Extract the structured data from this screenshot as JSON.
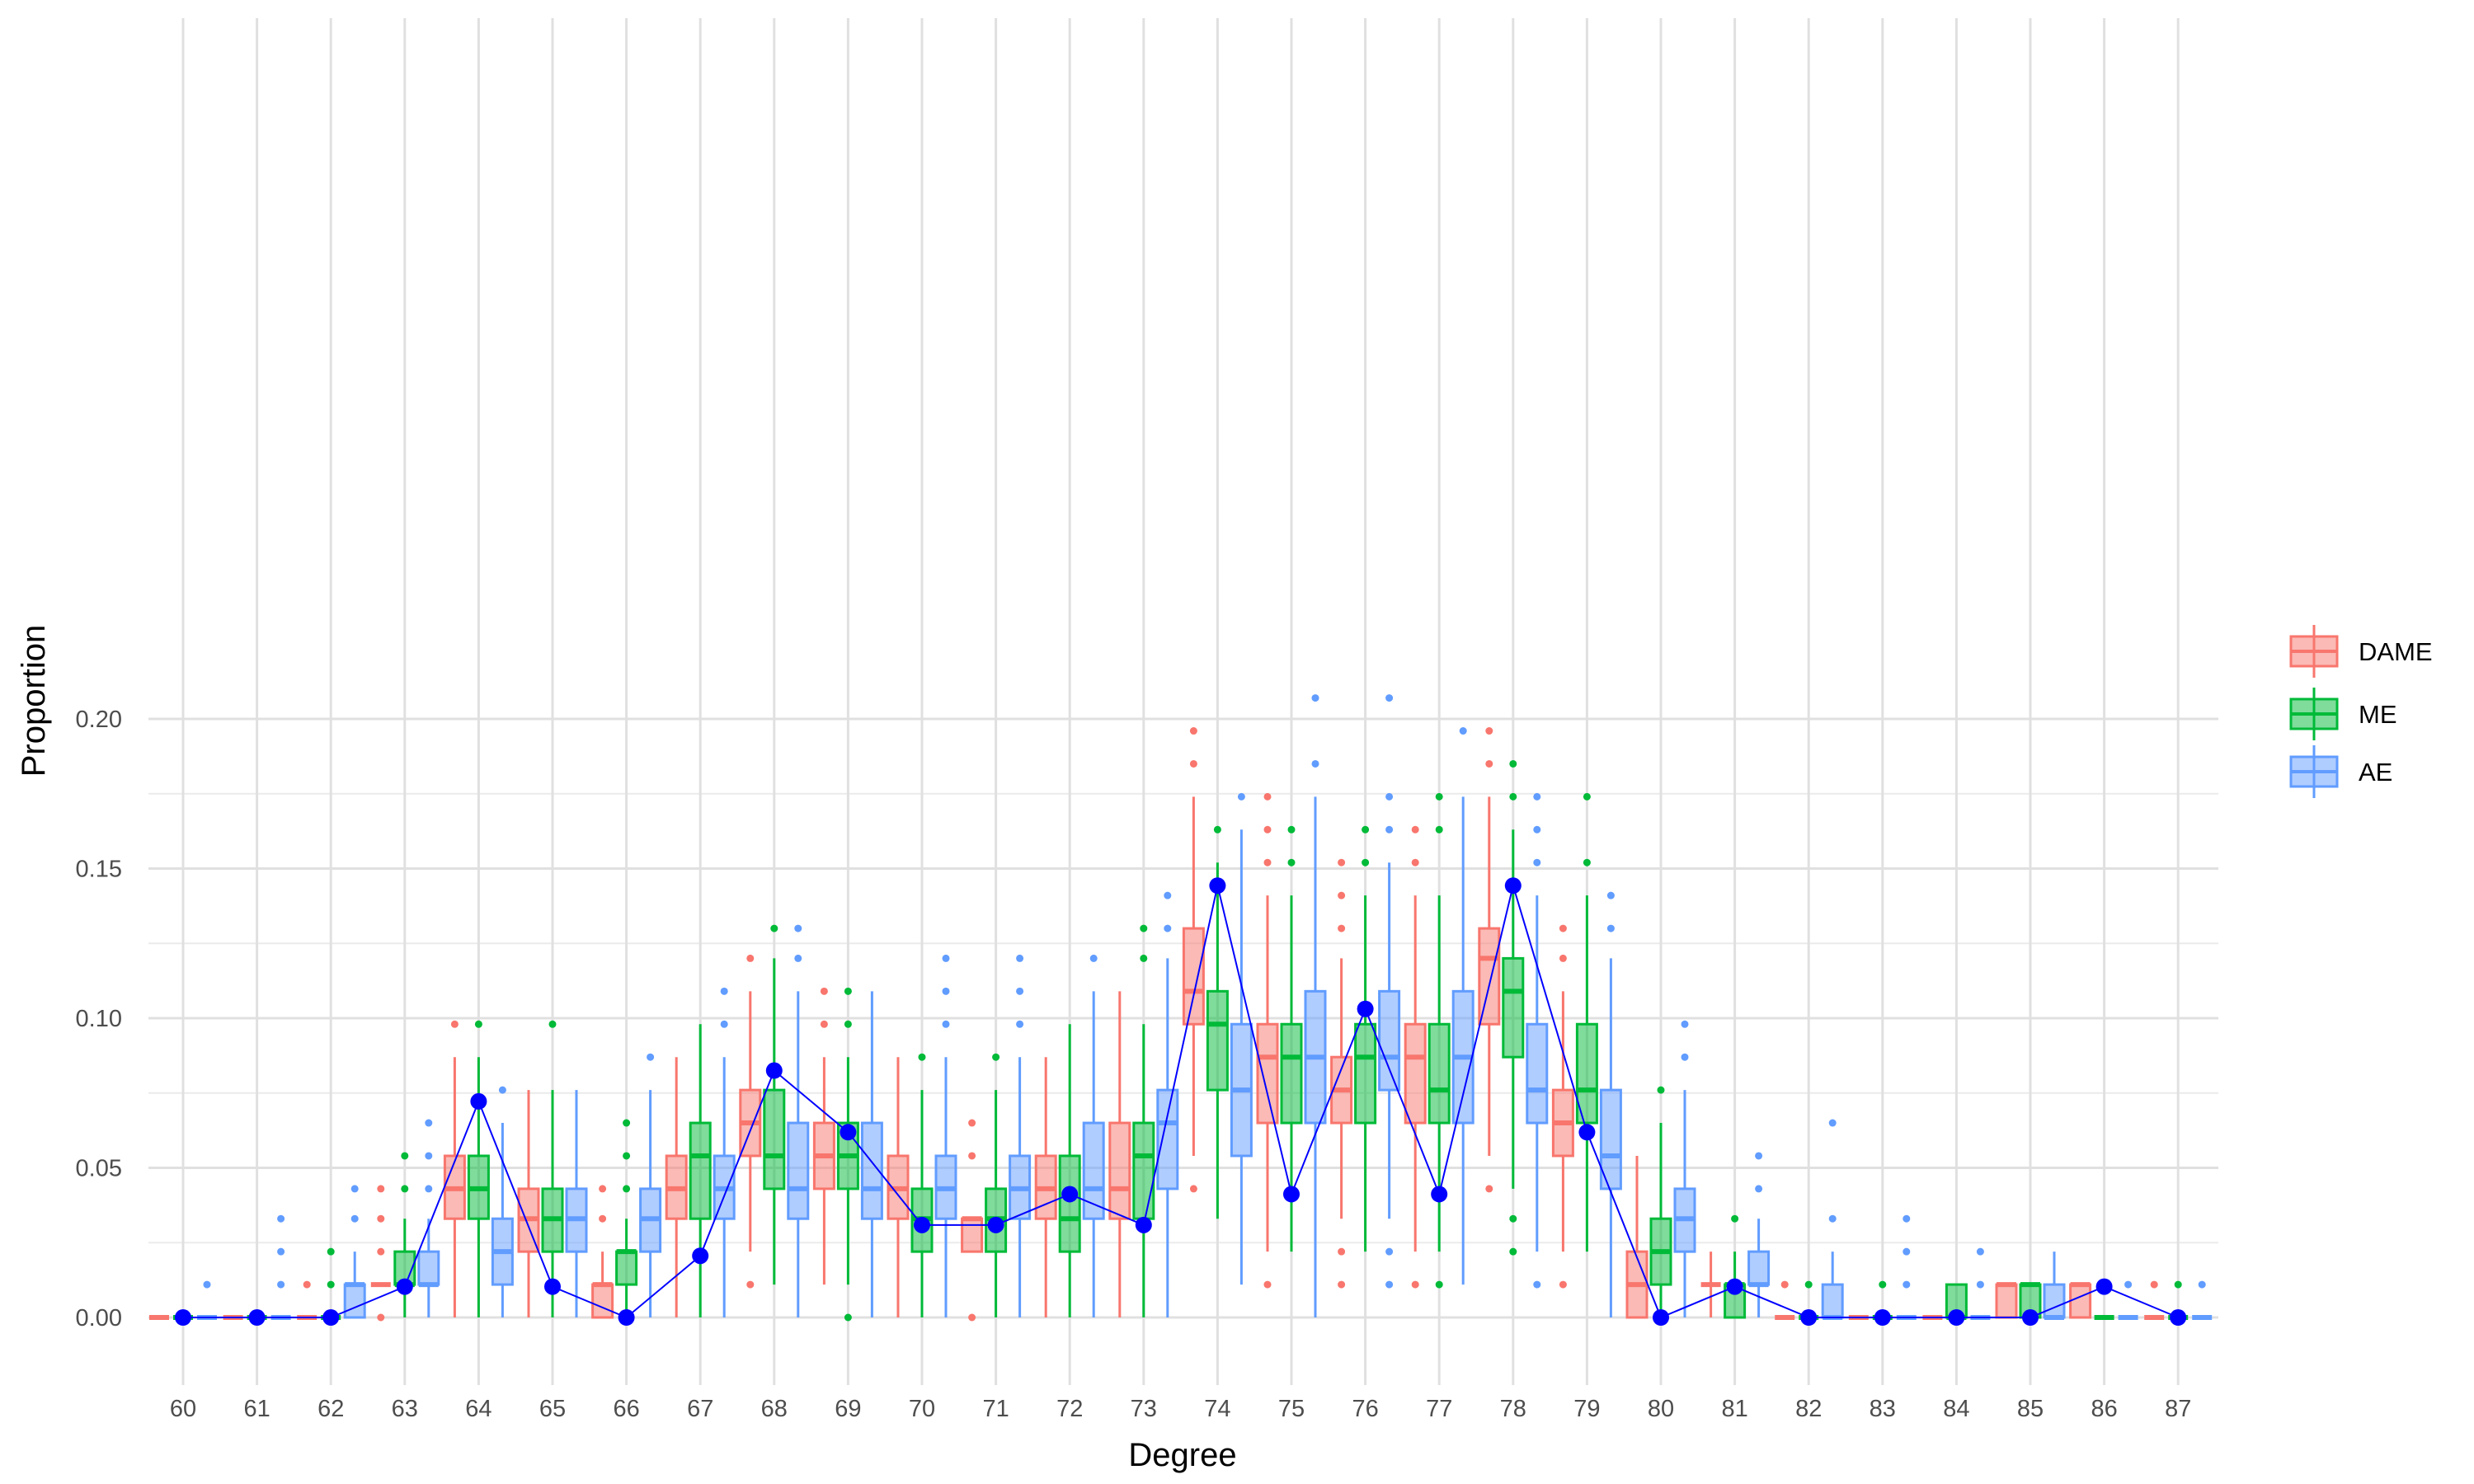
{
  "chart_data": {
    "type": "boxplot",
    "xlabel": "Degree",
    "ylabel": "Proportion",
    "categories": [
      "60",
      "61",
      "62",
      "63",
      "64",
      "65",
      "66",
      "67",
      "68",
      "69",
      "70",
      "71",
      "72",
      "73",
      "74",
      "75",
      "76",
      "77",
      "78",
      "79",
      "80",
      "81",
      "82",
      "83",
      "84",
      "85",
      "86",
      "87"
    ],
    "ylim": [
      -0.01,
      0.218
    ],
    "yticks": [
      0.0,
      0.05,
      0.1,
      0.15,
      0.2
    ],
    "ytick_labels": [
      "0.00",
      "0.05",
      "0.10",
      "0.15",
      "0.20"
    ],
    "grid": true,
    "legend_position": "right",
    "series": [
      {
        "name": "DAME",
        "color": "#F8766D",
        "boxes": [
          {
            "lower": 0,
            "q1": 0,
            "median": 0,
            "q3": 0,
            "upper": 0,
            "outliers": []
          },
          {
            "lower": 0,
            "q1": 0,
            "median": 0,
            "q3": 0,
            "upper": 0,
            "outliers": []
          },
          {
            "lower": 0,
            "q1": 0,
            "median": 0,
            "q3": 0,
            "upper": 0,
            "outliers": [
              0.011
            ]
          },
          {
            "lower": 0.011,
            "q1": 0.011,
            "median": 0.011,
            "q3": 0.011,
            "upper": 0.011,
            "outliers": [
              0.043,
              0.033,
              0.022,
              0
            ]
          },
          {
            "lower": 0,
            "q1": 0.033,
            "median": 0.043,
            "q3": 0.054,
            "upper": 0.087,
            "outliers": [
              0.098
            ]
          },
          {
            "lower": 0,
            "q1": 0.022,
            "median": 0.033,
            "q3": 0.043,
            "upper": 0.076,
            "outliers": []
          },
          {
            "lower": 0,
            "q1": 0,
            "median": 0.011,
            "q3": 0.011,
            "upper": 0.022,
            "outliers": [
              0.043,
              0.033
            ]
          },
          {
            "lower": 0,
            "q1": 0.033,
            "median": 0.043,
            "q3": 0.054,
            "upper": 0.087,
            "outliers": []
          },
          {
            "lower": 0.022,
            "q1": 0.054,
            "median": 0.065,
            "q3": 0.076,
            "upper": 0.109,
            "outliers": [
              0.12,
              0.011
            ]
          },
          {
            "lower": 0.011,
            "q1": 0.043,
            "median": 0.054,
            "q3": 0.065,
            "upper": 0.087,
            "outliers": [
              0.109,
              0.098
            ]
          },
          {
            "lower": 0,
            "q1": 0.033,
            "median": 0.043,
            "q3": 0.054,
            "upper": 0.087,
            "outliers": []
          },
          {
            "lower": 0.022,
            "q1": 0.022,
            "median": 0.033,
            "q3": 0.033,
            "upper": 0.033,
            "outliers": [
              0.065,
              0.054,
              0
            ]
          },
          {
            "lower": 0,
            "q1": 0.033,
            "median": 0.043,
            "q3": 0.054,
            "upper": 0.087,
            "outliers": []
          },
          {
            "lower": 0,
            "q1": 0.033,
            "median": 0.043,
            "q3": 0.065,
            "upper": 0.109,
            "outliers": []
          },
          {
            "lower": 0.054,
            "q1": 0.098,
            "median": 0.109,
            "q3": 0.13,
            "upper": 0.174,
            "outliers": [
              0.196,
              0.185,
              0.043
            ]
          },
          {
            "lower": 0.022,
            "q1": 0.065,
            "median": 0.087,
            "q3": 0.098,
            "upper": 0.141,
            "outliers": [
              0.174,
              0.163,
              0.152,
              0.011
            ]
          },
          {
            "lower": 0.033,
            "q1": 0.065,
            "median": 0.076,
            "q3": 0.087,
            "upper": 0.12,
            "outliers": [
              0.152,
              0.141,
              0.13,
              0.022,
              0.011
            ]
          },
          {
            "lower": 0.022,
            "q1": 0.065,
            "median": 0.087,
            "q3": 0.098,
            "upper": 0.141,
            "outliers": [
              0.163,
              0.152,
              0.011
            ]
          },
          {
            "lower": 0.054,
            "q1": 0.098,
            "median": 0.12,
            "q3": 0.13,
            "upper": 0.174,
            "outliers": [
              0.196,
              0.185,
              0.043
            ]
          },
          {
            "lower": 0.022,
            "q1": 0.054,
            "median": 0.065,
            "q3": 0.076,
            "upper": 0.109,
            "outliers": [
              0.13,
              0.12,
              0.011
            ]
          },
          {
            "lower": 0,
            "q1": 0,
            "median": 0.011,
            "q3": 0.022,
            "upper": 0.054,
            "outliers": []
          },
          {
            "lower": 0,
            "q1": 0.011,
            "median": 0.011,
            "q3": 0.011,
            "upper": 0.022,
            "outliers": []
          },
          {
            "lower": 0,
            "q1": 0,
            "median": 0,
            "q3": 0,
            "upper": 0,
            "outliers": [
              0.011
            ]
          },
          {
            "lower": 0,
            "q1": 0,
            "median": 0,
            "q3": 0,
            "upper": 0,
            "outliers": []
          },
          {
            "lower": 0,
            "q1": 0,
            "median": 0,
            "q3": 0,
            "upper": 0,
            "outliers": []
          },
          {
            "lower": 0,
            "q1": 0,
            "median": 0.011,
            "q3": 0.011,
            "upper": 0.011,
            "outliers": []
          },
          {
            "lower": 0,
            "q1": 0,
            "median": 0.011,
            "q3": 0.011,
            "upper": 0.011,
            "outliers": []
          },
          {
            "lower": 0,
            "q1": 0,
            "median": 0,
            "q3": 0,
            "upper": 0,
            "outliers": [
              0.011
            ]
          }
        ]
      },
      {
        "name": "ME",
        "color": "#00BA38",
        "boxes": [
          {
            "lower": 0,
            "q1": 0,
            "median": 0,
            "q3": 0,
            "upper": 0,
            "outliers": []
          },
          {
            "lower": 0,
            "q1": 0,
            "median": 0,
            "q3": 0,
            "upper": 0,
            "outliers": []
          },
          {
            "lower": 0,
            "q1": 0,
            "median": 0,
            "q3": 0,
            "upper": 0,
            "outliers": [
              0.022,
              0.011
            ]
          },
          {
            "lower": 0,
            "q1": 0.011,
            "median": 0.011,
            "q3": 0.022,
            "upper": 0.033,
            "outliers": [
              0.054,
              0.043
            ]
          },
          {
            "lower": 0,
            "q1": 0.033,
            "median": 0.043,
            "q3": 0.054,
            "upper": 0.087,
            "outliers": [
              0.098
            ]
          },
          {
            "lower": 0,
            "q1": 0.022,
            "median": 0.033,
            "q3": 0.043,
            "upper": 0.076,
            "outliers": [
              0.098
            ]
          },
          {
            "lower": 0,
            "q1": 0.011,
            "median": 0.022,
            "q3": 0.022,
            "upper": 0.033,
            "outliers": [
              0.065,
              0.054,
              0.043
            ]
          },
          {
            "lower": 0,
            "q1": 0.033,
            "median": 0.054,
            "q3": 0.065,
            "upper": 0.098,
            "outliers": []
          },
          {
            "lower": 0.011,
            "q1": 0.043,
            "median": 0.054,
            "q3": 0.076,
            "upper": 0.12,
            "outliers": [
              0.13
            ]
          },
          {
            "lower": 0.011,
            "q1": 0.043,
            "median": 0.054,
            "q3": 0.065,
            "upper": 0.087,
            "outliers": [
              0.109,
              0.098,
              0
            ]
          },
          {
            "lower": 0,
            "q1": 0.022,
            "median": 0.033,
            "q3": 0.043,
            "upper": 0.076,
            "outliers": [
              0.087
            ]
          },
          {
            "lower": 0,
            "q1": 0.022,
            "median": 0.033,
            "q3": 0.043,
            "upper": 0.076,
            "outliers": [
              0.087
            ]
          },
          {
            "lower": 0,
            "q1": 0.022,
            "median": 0.033,
            "q3": 0.054,
            "upper": 0.098,
            "outliers": []
          },
          {
            "lower": 0,
            "q1": 0.033,
            "median": 0.054,
            "q3": 0.065,
            "upper": 0.098,
            "outliers": [
              0.13,
              0.12
            ]
          },
          {
            "lower": 0.033,
            "q1": 0.076,
            "median": 0.098,
            "q3": 0.109,
            "upper": 0.152,
            "outliers": [
              0.163
            ]
          },
          {
            "lower": 0.022,
            "q1": 0.065,
            "median": 0.087,
            "q3": 0.098,
            "upper": 0.141,
            "outliers": [
              0.163,
              0.152
            ]
          },
          {
            "lower": 0.022,
            "q1": 0.065,
            "median": 0.087,
            "q3": 0.098,
            "upper": 0.141,
            "outliers": [
              0.163,
              0.152
            ]
          },
          {
            "lower": 0.022,
            "q1": 0.065,
            "median": 0.076,
            "q3": 0.098,
            "upper": 0.141,
            "outliers": [
              0.174,
              0.163,
              0.011
            ]
          },
          {
            "lower": 0.043,
            "q1": 0.087,
            "median": 0.109,
            "q3": 0.12,
            "upper": 0.163,
            "outliers": [
              0.185,
              0.174,
              0.033,
              0.022
            ]
          },
          {
            "lower": 0.022,
            "q1": 0.065,
            "median": 0.076,
            "q3": 0.098,
            "upper": 0.141,
            "outliers": [
              0.174,
              0.152
            ]
          },
          {
            "lower": 0,
            "q1": 0.011,
            "median": 0.022,
            "q3": 0.033,
            "upper": 0.065,
            "outliers": [
              0.076
            ]
          },
          {
            "lower": 0,
            "q1": 0,
            "median": 0.011,
            "q3": 0.011,
            "upper": 0.022,
            "outliers": [
              0.033
            ]
          },
          {
            "lower": 0,
            "q1": 0,
            "median": 0,
            "q3": 0,
            "upper": 0,
            "outliers": [
              0.011
            ]
          },
          {
            "lower": 0,
            "q1": 0,
            "median": 0,
            "q3": 0,
            "upper": 0,
            "outliers": [
              0.011
            ]
          },
          {
            "lower": 0,
            "q1": 0,
            "median": 0,
            "q3": 0.011,
            "upper": 0.011,
            "outliers": []
          },
          {
            "lower": 0,
            "q1": 0,
            "median": 0.011,
            "q3": 0.011,
            "upper": 0.011,
            "outliers": []
          },
          {
            "lower": 0,
            "q1": 0,
            "median": 0,
            "q3": 0,
            "upper": 0,
            "outliers": [
              0.011
            ]
          },
          {
            "lower": 0,
            "q1": 0,
            "median": 0,
            "q3": 0,
            "upper": 0,
            "outliers": [
              0.011
            ]
          }
        ]
      },
      {
        "name": "AE",
        "color": "#619CFF",
        "boxes": [
          {
            "lower": 0,
            "q1": 0,
            "median": 0,
            "q3": 0,
            "upper": 0,
            "outliers": [
              0.011
            ]
          },
          {
            "lower": 0,
            "q1": 0,
            "median": 0,
            "q3": 0,
            "upper": 0,
            "outliers": [
              0.033,
              0.022,
              0.011
            ]
          },
          {
            "lower": 0,
            "q1": 0,
            "median": 0.011,
            "q3": 0.011,
            "upper": 0.022,
            "outliers": [
              0.043,
              0.033
            ]
          },
          {
            "lower": 0,
            "q1": 0.011,
            "median": 0.011,
            "q3": 0.022,
            "upper": 0.033,
            "outliers": [
              0.065,
              0.054,
              0.043
            ]
          },
          {
            "lower": 0,
            "q1": 0.011,
            "median": 0.022,
            "q3": 0.033,
            "upper": 0.065,
            "outliers": [
              0.076
            ]
          },
          {
            "lower": 0,
            "q1": 0.022,
            "median": 0.033,
            "q3": 0.043,
            "upper": 0.076,
            "outliers": []
          },
          {
            "lower": 0,
            "q1": 0.022,
            "median": 0.033,
            "q3": 0.043,
            "upper": 0.076,
            "outliers": [
              0.087
            ]
          },
          {
            "lower": 0,
            "q1": 0.033,
            "median": 0.043,
            "q3": 0.054,
            "upper": 0.087,
            "outliers": [
              0.109,
              0.098
            ]
          },
          {
            "lower": 0,
            "q1": 0.033,
            "median": 0.043,
            "q3": 0.065,
            "upper": 0.109,
            "outliers": [
              0.13,
              0.12
            ]
          },
          {
            "lower": 0,
            "q1": 0.033,
            "median": 0.043,
            "q3": 0.065,
            "upper": 0.109,
            "outliers": []
          },
          {
            "lower": 0,
            "q1": 0.033,
            "median": 0.043,
            "q3": 0.054,
            "upper": 0.087,
            "outliers": [
              0.12,
              0.109,
              0.098
            ]
          },
          {
            "lower": 0,
            "q1": 0.033,
            "median": 0.043,
            "q3": 0.054,
            "upper": 0.087,
            "outliers": [
              0.12,
              0.109,
              0.098
            ]
          },
          {
            "lower": 0,
            "q1": 0.033,
            "median": 0.043,
            "q3": 0.065,
            "upper": 0.109,
            "outliers": [
              0.12
            ]
          },
          {
            "lower": 0,
            "q1": 0.043,
            "median": 0.065,
            "q3": 0.076,
            "upper": 0.12,
            "outliers": [
              0.141,
              0.13
            ]
          },
          {
            "lower": 0.011,
            "q1": 0.054,
            "median": 0.076,
            "q3": 0.098,
            "upper": 0.163,
            "outliers": [
              0.174
            ]
          },
          {
            "lower": 0,
            "q1": 0.065,
            "median": 0.087,
            "q3": 0.109,
            "upper": 0.174,
            "outliers": [
              0.207,
              0.185
            ]
          },
          {
            "lower": 0.033,
            "q1": 0.076,
            "median": 0.087,
            "q3": 0.109,
            "upper": 0.152,
            "outliers": [
              0.207,
              0.174,
              0.163,
              0.022,
              0.011
            ]
          },
          {
            "lower": 0.011,
            "q1": 0.065,
            "median": 0.087,
            "q3": 0.109,
            "upper": 0.174,
            "outliers": [
              0.196
            ]
          },
          {
            "lower": 0.022,
            "q1": 0.065,
            "median": 0.076,
            "q3": 0.098,
            "upper": 0.141,
            "outliers": [
              0.174,
              0.163,
              0.152,
              0.011
            ]
          },
          {
            "lower": 0,
            "q1": 0.043,
            "median": 0.054,
            "q3": 0.076,
            "upper": 0.12,
            "outliers": [
              0.141,
              0.13
            ]
          },
          {
            "lower": 0,
            "q1": 0.022,
            "median": 0.033,
            "q3": 0.043,
            "upper": 0.076,
            "outliers": [
              0.098,
              0.087
            ]
          },
          {
            "lower": 0,
            "q1": 0.011,
            "median": 0.011,
            "q3": 0.022,
            "upper": 0.033,
            "outliers": [
              0.054,
              0.043
            ]
          },
          {
            "lower": 0,
            "q1": 0,
            "median": 0,
            "q3": 0.011,
            "upper": 0.022,
            "outliers": [
              0.065,
              0.033
            ]
          },
          {
            "lower": 0,
            "q1": 0,
            "median": 0,
            "q3": 0,
            "upper": 0,
            "outliers": [
              0.033,
              0.022,
              0.011
            ]
          },
          {
            "lower": 0,
            "q1": 0,
            "median": 0,
            "q3": 0,
            "upper": 0,
            "outliers": [
              0.022,
              0.011
            ]
          },
          {
            "lower": 0,
            "q1": 0,
            "median": 0,
            "q3": 0.011,
            "upper": 0.022,
            "outliers": []
          },
          {
            "lower": 0,
            "q1": 0,
            "median": 0,
            "q3": 0,
            "upper": 0,
            "outliers": [
              0.011
            ]
          },
          {
            "lower": 0,
            "q1": 0,
            "median": 0,
            "q3": 0,
            "upper": 0,
            "outliers": [
              0.011
            ]
          }
        ]
      }
    ],
    "line": {
      "color": "#0000FF",
      "values": [
        0,
        0,
        0,
        0.0103,
        0.0722,
        0.0103,
        0,
        0.0206,
        0.0825,
        0.0619,
        0.0309,
        0.0309,
        0.0412,
        0.0309,
        0.1443,
        0.0412,
        0.1031,
        0.0412,
        0.1443,
        0.0619,
        0,
        0.0103,
        0,
        0,
        0,
        0,
        0.0103,
        0
      ]
    }
  }
}
